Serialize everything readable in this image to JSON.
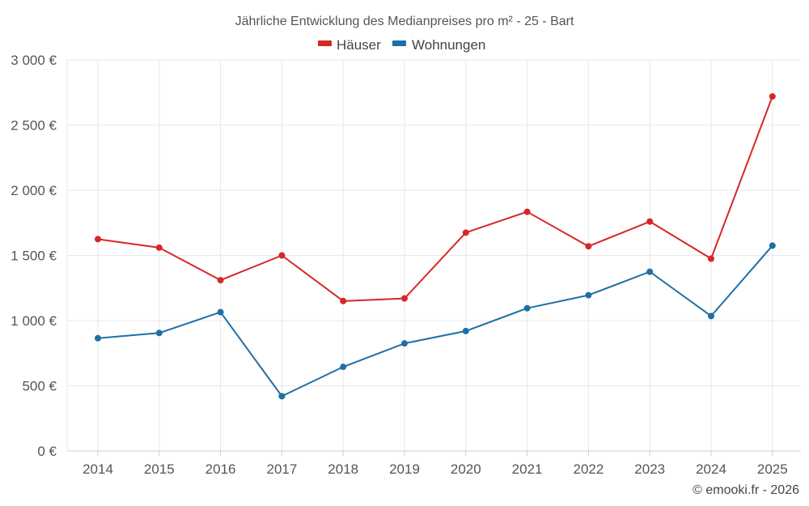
{
  "chart_data": {
    "type": "line",
    "title": "Jährliche Entwicklung des Medianpreises pro m² - 25 - Bart",
    "categories": [
      "2014",
      "2015",
      "2016",
      "2017",
      "2018",
      "2019",
      "2020",
      "2021",
      "2022",
      "2023",
      "2024",
      "2025"
    ],
    "y_ticks": [
      0,
      500,
      1000,
      1500,
      2000,
      2500,
      3000
    ],
    "y_tick_labels": [
      "0 €",
      "500 €",
      "1 000 €",
      "1 500 €",
      "2 000 €",
      "2 500 €",
      "3 000 €"
    ],
    "ylim": [
      0,
      3000
    ],
    "grid": true,
    "legend_position": "top-center",
    "series": [
      {
        "name": "Häuser",
        "color": "#d62728",
        "values": [
          1625,
          1560,
          1310,
          1500,
          1150,
          1170,
          1675,
          1835,
          1570,
          1760,
          1475,
          2720
        ]
      },
      {
        "name": "Wohnungen",
        "color": "#1f6fa5",
        "values": [
          865,
          905,
          1065,
          420,
          645,
          825,
          920,
          1095,
          1195,
          1375,
          1035,
          1575
        ]
      }
    ]
  },
  "credit": "© emooki.fr - 2026"
}
